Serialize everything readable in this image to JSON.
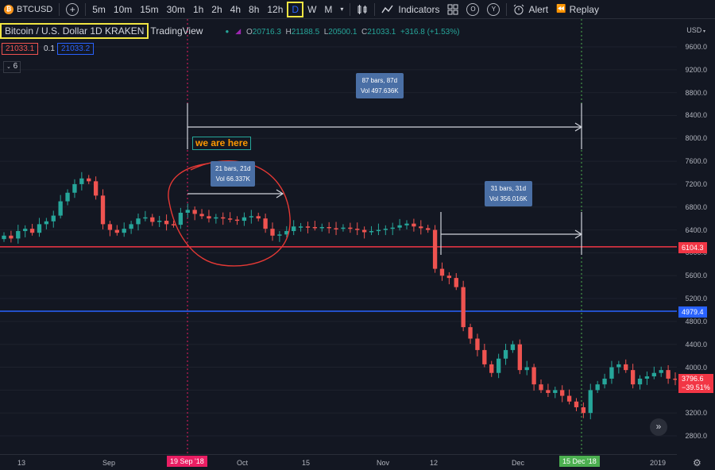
{
  "toolbar": {
    "symbol": "BTCUSD",
    "add_icon": "plus-icon",
    "timeframes": [
      "5m",
      "10m",
      "15m",
      "30m",
      "1h",
      "2h",
      "4h",
      "8h",
      "12h",
      "D",
      "W",
      "M"
    ],
    "active_timeframe": "D",
    "indicators_label": "Indicators",
    "alert_label": "Alert",
    "replay_label": "Replay"
  },
  "legend": {
    "title": "Bitcoin / U.S. Dollar  1D  KRAKEN",
    "brand": "TradingView",
    "o_key": "O",
    "o": "20716.3",
    "h_key": "H",
    "h": "21188.5",
    "l_key": "L",
    "l": "20500.1",
    "c_key": "C",
    "c": "21033.1",
    "change": "+316.8 (+1.53%)",
    "sell": "21033.1",
    "spread": "0.1",
    "buy": "21033.2",
    "collapse_count": "6"
  },
  "yaxis": {
    "currency": "USD",
    "labels": [
      "9600.0",
      "9200.0",
      "8800.0",
      "8400.0",
      "8000.0",
      "7600.0",
      "7200.0",
      "6800.0",
      "6400.0",
      "6000.0",
      "5600.0",
      "5200.0",
      "4800.0",
      "4400.0",
      "4000.0",
      "3600.0",
      "3200.0",
      "2800.0"
    ],
    "line_red": "6104.3",
    "line_blue": "4979.4",
    "last_price": "3796.6",
    "last_change": "−39.51%"
  },
  "xaxis": {
    "labels": [
      "13",
      "Sep",
      "Oct",
      "15",
      "Nov",
      "12",
      "Dec",
      "2019"
    ],
    "marker_left": "19 Sep '18",
    "marker_right": "15 Dec '18"
  },
  "annotations": {
    "measure_big": {
      "line1": "87 bars, 87d",
      "line2": "Vol 497.636K"
    },
    "measure_small": {
      "line1": "21 bars, 21d",
      "line2": "Vol 66.337K"
    },
    "measure_right": {
      "line1": "31 bars, 31d",
      "line2": "Vol 356.016K"
    },
    "note": "we are here"
  },
  "colors": {
    "up": "#26a69a",
    "down": "#ef5350",
    "line_red": "#f23645",
    "line_blue": "#2962ff",
    "accent": "#2962ff"
  },
  "chart_data": {
    "type": "candlestick",
    "series": [
      {
        "name": "BTCUSD",
        "close": [
          6300,
          6250,
          6380,
          6420,
          6350,
          6500,
          6550,
          6650,
          6900,
          7050,
          7200,
          7300,
          7250,
          7000,
          6500,
          6400,
          6350,
          6420,
          6500,
          6600,
          6620,
          6540,
          6560,
          6500,
          6490,
          6700,
          6750,
          6680,
          6640,
          6600,
          6620,
          6600,
          6580,
          6560,
          6620,
          6640,
          6600,
          6420,
          6300,
          6320,
          6380,
          6460,
          6460,
          6450,
          6440,
          6450,
          6430,
          6420,
          6440,
          6420,
          6400,
          6360,
          6380,
          6400,
          6420,
          6440,
          6480,
          6510,
          6460,
          6430,
          6400,
          5720,
          5600,
          5560,
          5400,
          4700,
          4500,
          4300,
          4050,
          3900,
          4150,
          4300,
          4400,
          3950,
          4000,
          3700,
          3600,
          3550,
          3600,
          3500,
          3400,
          3300,
          3200,
          3600,
          3700,
          3800,
          4000,
          4050,
          3950,
          3700,
          3800,
          3840,
          3900,
          3950,
          3800,
          3796.6
        ]
      }
    ],
    "ylim": [
      2600,
      9900
    ]
  }
}
